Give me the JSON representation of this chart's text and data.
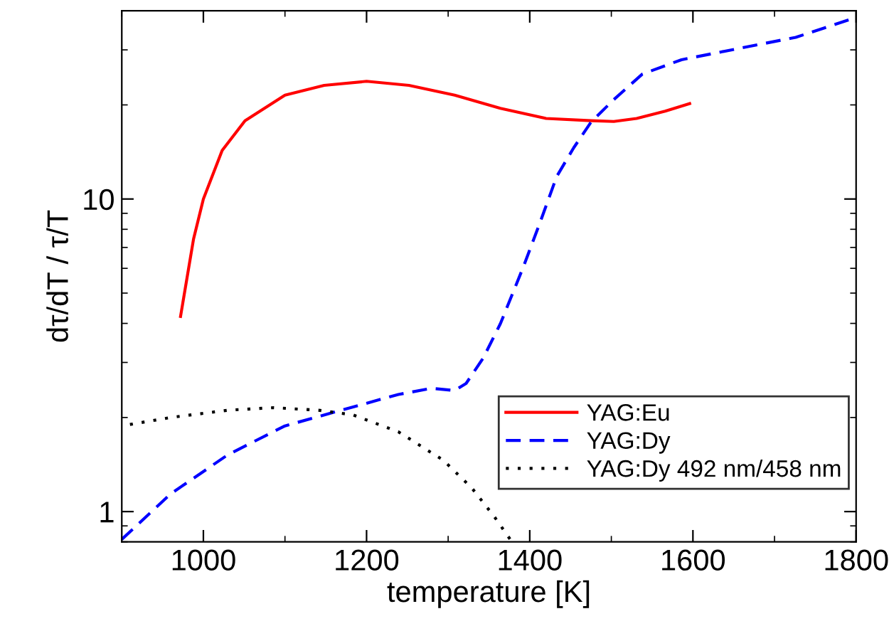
{
  "chart_data": {
    "type": "line",
    "xlabel": "temperature [K]",
    "ylabel": "dτ/dT / τ/T",
    "log": "y",
    "xlim": [
      900,
      1800
    ],
    "xticks": [
      1000,
      1200,
      1400,
      1600,
      1800
    ],
    "ylim": [
      0.8,
      40
    ],
    "yticks": [
      1,
      10
    ],
    "grid": false,
    "legend": "bottom right",
    "marker": "none",
    "series": [
      {
        "name": "YAG:Eu",
        "color": "#ff0000",
        "line_style": "solid",
        "x": [
          972,
          988,
          1000,
          1023,
          1051,
          1100,
          1148,
          1200,
          1252,
          1308,
          1364,
          1420,
          1475,
          1503,
          1531,
          1566,
          1596
        ],
        "values": [
          4.21,
          7.46,
          10,
          14.3,
          17.8,
          21.5,
          23.1,
          23.8,
          23.1,
          21.5,
          19.5,
          18.1,
          17.8,
          17.7,
          18.1,
          19.1,
          20.2
        ]
      },
      {
        "name": "YAG:Dy",
        "color": "#0000ff",
        "line_style": "dashed",
        "x": [
          900,
          960,
          1030,
          1100,
          1169,
          1239,
          1280,
          1308,
          1322,
          1343,
          1364,
          1392,
          1413,
          1433,
          1454,
          1475,
          1503,
          1538,
          1586,
          1656,
          1726,
          1800
        ],
        "values": [
          0.815,
          1.14,
          1.52,
          1.88,
          2.11,
          2.37,
          2.48,
          2.44,
          2.57,
          3.1,
          3.99,
          6.05,
          8.46,
          11.8,
          14.6,
          17.6,
          20.8,
          25.1,
          27.9,
          30.3,
          32.9,
          38.1
        ]
      },
      {
        "name": "YAG:Dy 492 nm/458 nm",
        "color": "#000000",
        "line_style": "dotted",
        "x": [
          910,
          960,
          1030,
          1086,
          1141,
          1183,
          1239,
          1294,
          1329,
          1357,
          1376
        ],
        "values": [
          1.9,
          2.0,
          2.11,
          2.15,
          2.11,
          2.04,
          1.8,
          1.46,
          1.19,
          0.96,
          0.815
        ]
      }
    ]
  }
}
